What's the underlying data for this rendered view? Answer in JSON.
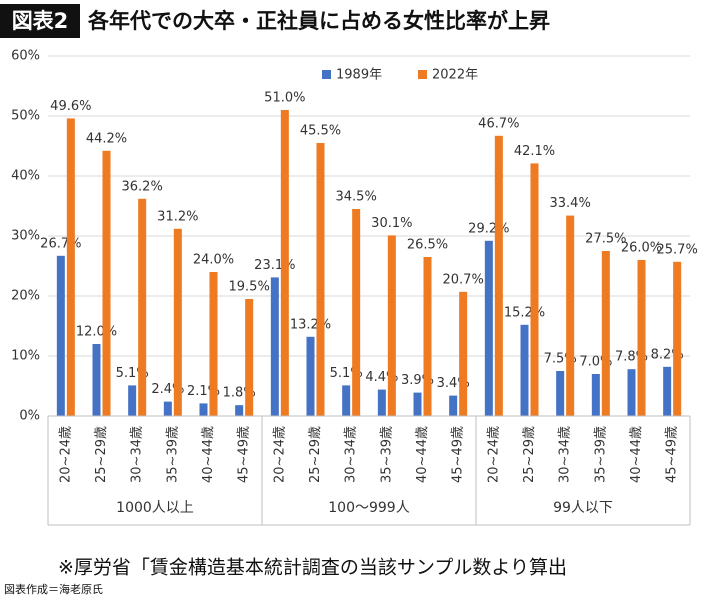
{
  "chart_data": {
    "type": "bar",
    "badge": "図表2",
    "title": "各年代での大卒・正社員に占める女性比率が上昇",
    "categories": [
      "20~24歳",
      "25~29歳",
      "30~34歳",
      "35~39歳",
      "40~44歳",
      "45~49歳",
      "20~24歳",
      "25~29歳",
      "30~34歳",
      "35~39歳",
      "40~44歳",
      "45~49歳",
      "20~24歳",
      "25~29歳",
      "30~34歳",
      "35~39歳",
      "40~44歳",
      "45~49歳"
    ],
    "groups": [
      "1000人以上",
      "100〜999人",
      "99人以下"
    ],
    "series": [
      {
        "name": "1989年",
        "color": "#4472c4",
        "values": [
          26.7,
          12.0,
          5.1,
          2.4,
          2.1,
          1.8,
          23.1,
          13.2,
          5.1,
          4.4,
          3.9,
          3.4,
          29.2,
          15.2,
          7.5,
          7.0,
          7.8,
          8.2
        ],
        "value_labels": [
          "26.7%",
          "12.0%",
          "5.1%",
          "2.4%",
          "2.1%",
          "1.8%",
          "23.1%",
          "13.2%",
          "5.1%",
          "4.4%",
          "3.9%",
          "3.4%",
          "29.2%",
          "15.2%",
          "7.5%",
          "7.0%",
          "7.8%",
          "8.2%"
        ]
      },
      {
        "name": "2022年",
        "color": "#ee7a22",
        "values": [
          49.6,
          44.2,
          36.2,
          31.2,
          24.0,
          19.5,
          51.0,
          45.5,
          34.5,
          30.1,
          26.5,
          20.7,
          46.7,
          42.1,
          33.4,
          27.5,
          26.0,
          25.7
        ],
        "value_labels": [
          "49.6%",
          "44.2%",
          "36.2%",
          "31.2%",
          "24.0%",
          "19.5%",
          "51.0%",
          "45.5%",
          "34.5%",
          "30.1%",
          "26.5%",
          "20.7%",
          "46.7%",
          "42.1%",
          "33.4%",
          "27.5%",
          "26.0%",
          "25.7%"
        ]
      }
    ],
    "ylim": [
      0,
      60
    ],
    "yticks": [
      {
        "value": 0,
        "label": "0%"
      },
      {
        "value": 10,
        "label": "10%"
      },
      {
        "value": 20,
        "label": "20%"
      },
      {
        "value": 30,
        "label": "30%"
      },
      {
        "value": 40,
        "label": "40%"
      },
      {
        "value": 50,
        "label": "50%"
      },
      {
        "value": 60,
        "label": "60%"
      }
    ],
    "grid": true,
    "legend": "top",
    "footnote": "※厚労省「賃金構造基本統計調査の当該サンプル数より算出",
    "source": "図表作成＝海老原氏"
  }
}
